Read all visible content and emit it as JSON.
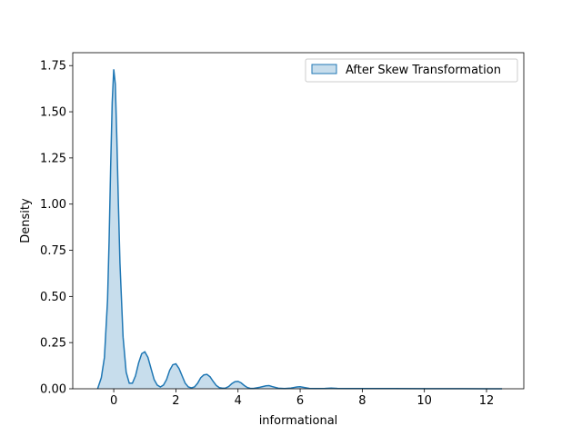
{
  "chart_data": {
    "type": "area",
    "xlabel": "informational",
    "ylabel": "Density",
    "xlim": [
      -1.32,
      13.2
    ],
    "ylim": [
      0,
      1.82
    ],
    "x_ticks": [
      0,
      2,
      4,
      6,
      8,
      10,
      12
    ],
    "x_tick_labels": [
      "0",
      "2",
      "4",
      "6",
      "8",
      "10",
      "12"
    ],
    "y_ticks": [
      0,
      0.25,
      0.5,
      0.75,
      1.0,
      1.25,
      1.5,
      1.75
    ],
    "y_tick_labels": [
      "0.00",
      "0.25",
      "0.50",
      "0.75",
      "1.00",
      "1.25",
      "1.50",
      "1.75"
    ],
    "grid": false,
    "legend_position": "top-right",
    "series": [
      {
        "name": "After Skew Transformation",
        "color": "#1f77b4",
        "x": [
          -0.52,
          -0.4,
          -0.3,
          -0.2,
          -0.15,
          -0.1,
          -0.05,
          0,
          0.05,
          0.1,
          0.15,
          0.2,
          0.3,
          0.4,
          0.5,
          0.6,
          0.7,
          0.8,
          0.9,
          1.0,
          1.1,
          1.2,
          1.3,
          1.4,
          1.5,
          1.6,
          1.7,
          1.8,
          1.9,
          2.0,
          2.1,
          2.2,
          2.3,
          2.4,
          2.5,
          2.6,
          2.7,
          2.8,
          2.9,
          3.0,
          3.1,
          3.2,
          3.3,
          3.4,
          3.5,
          3.6,
          3.7,
          3.8,
          3.9,
          4.0,
          4.1,
          4.2,
          4.3,
          4.4,
          4.5,
          4.7,
          4.9,
          5.0,
          5.1,
          5.3,
          5.5,
          5.7,
          5.9,
          6.0,
          6.1,
          6.3,
          6.5,
          6.8,
          7.0,
          7.2,
          7.5,
          8.0,
          9.0,
          10.0,
          11.0,
          12.0,
          12.5
        ],
        "y": [
          0.0,
          0.06,
          0.17,
          0.48,
          0.8,
          1.2,
          1.55,
          1.73,
          1.65,
          1.35,
          1.0,
          0.68,
          0.28,
          0.09,
          0.03,
          0.03,
          0.07,
          0.14,
          0.19,
          0.2,
          0.17,
          0.11,
          0.05,
          0.02,
          0.01,
          0.02,
          0.05,
          0.1,
          0.13,
          0.135,
          0.11,
          0.07,
          0.03,
          0.01,
          0.005,
          0.01,
          0.03,
          0.06,
          0.075,
          0.078,
          0.065,
          0.04,
          0.018,
          0.006,
          0.003,
          0.004,
          0.012,
          0.028,
          0.038,
          0.04,
          0.032,
          0.018,
          0.007,
          0.002,
          0.002,
          0.008,
          0.016,
          0.017,
          0.012,
          0.003,
          0.001,
          0.004,
          0.01,
          0.011,
          0.008,
          0.002,
          0.001,
          0.002,
          0.004,
          0.002,
          0.001,
          0.001,
          0.001,
          0.0005,
          0.0005,
          0.0003,
          0.0
        ]
      }
    ]
  }
}
